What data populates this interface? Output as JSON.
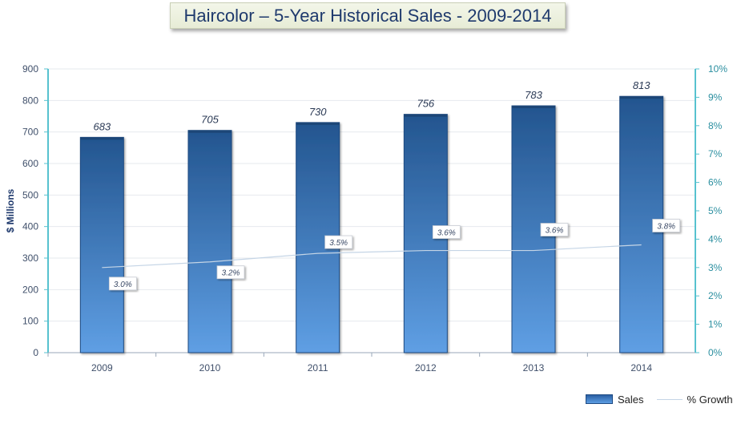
{
  "title": "Haircolor – 5-Year Historical Sales - 2009-2014",
  "chart_data": {
    "type": "bar",
    "title": "Haircolor – 5-Year Historical Sales - 2009-2014",
    "categories": [
      "2009",
      "2010",
      "2011",
      "2012",
      "2013",
      "2014"
    ],
    "series": [
      {
        "name": "Sales",
        "type": "bar",
        "axis": "left",
        "values": [
          683,
          705,
          730,
          756,
          783,
          813
        ],
        "labels": [
          "683",
          "705",
          "730",
          "756",
          "783",
          "813"
        ],
        "color": "#3a78c4"
      },
      {
        "name": "% Growth",
        "type": "line",
        "axis": "right",
        "values": [
          3.0,
          3.2,
          3.5,
          3.6,
          3.6,
          3.8
        ],
        "labels": [
          "3.0%",
          "3.2%",
          "3.5%",
          "3.6%",
          "3.6%",
          "3.8%"
        ],
        "color": "#c5d5e6"
      }
    ],
    "ylabel": "$ Millions",
    "xlabel": "",
    "ylim": [
      0,
      900
    ],
    "yticks": [
      "0",
      "100",
      "200",
      "300",
      "400",
      "500",
      "600",
      "700",
      "800",
      "900"
    ],
    "y2lim": [
      0,
      10
    ],
    "y2ticks": [
      "0%",
      "1%",
      "2%",
      "3%",
      "4%",
      "5%",
      "6%",
      "7%",
      "8%",
      "9%",
      "10%"
    ],
    "grid": true,
    "legend": "bottom-right"
  },
  "legend": {
    "sales_label": "Sales",
    "growth_label": "% Growth"
  }
}
